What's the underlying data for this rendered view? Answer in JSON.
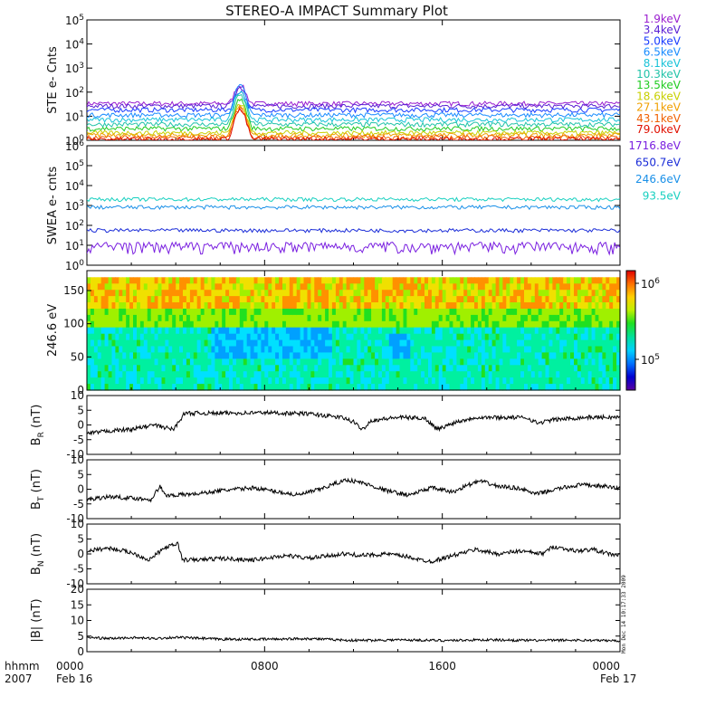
{
  "title": "STEREO-A IMPACT Summary Plot",
  "footer": {
    "time_label": "hhmm",
    "year": "2007",
    "start_date": "Feb 16",
    "end_date": "Feb 17",
    "stamp": "Mon Dec 14 10:17:33 2009"
  },
  "colors": {
    "axes": "#000000",
    "field_line": "#000000"
  },
  "chart_data": [
    {
      "type": "line",
      "id": "ste",
      "ylabel": "STE e- Cnts",
      "scale": "log",
      "ylim": [
        1,
        100000
      ],
      "y_ticks": [
        "10^0",
        "10^1",
        "10^2",
        "10^3",
        "10^4",
        "10^5"
      ],
      "series": [
        {
          "name": "1.9keV",
          "color": "#9b20d0",
          "level": 33
        },
        {
          "name": "3.4keV",
          "color": "#5a1fd4",
          "level": 26
        },
        {
          "name": "5.0keV",
          "color": "#1a3cff",
          "level": 18
        },
        {
          "name": "6.5keV",
          "color": "#1a8cff",
          "level": 11
        },
        {
          "name": "8.1keV",
          "color": "#19c3d8",
          "level": 7
        },
        {
          "name": "10.3keV",
          "color": "#22c3a8",
          "level": 4.5
        },
        {
          "name": "13.5keV",
          "color": "#22cc22",
          "level": 3
        },
        {
          "name": "18.6keV",
          "color": "#c8d000",
          "level": 2
        },
        {
          "name": "27.1keV",
          "color": "#f0a000",
          "level": 1.6
        },
        {
          "name": "43.1keV",
          "color": "#f06000",
          "level": 1.3
        },
        {
          "name": "79.0keV",
          "color": "#e01000",
          "level": 1.1
        }
      ]
    },
    {
      "type": "line",
      "id": "swea",
      "ylabel": "SWEA e- cnts",
      "scale": "log",
      "ylim": [
        1,
        1000000
      ],
      "y_ticks": [
        "10^0",
        "10^1",
        "10^2",
        "10^3",
        "10^4",
        "10^5",
        "10^6"
      ],
      "series": [
        {
          "name": "1716.8eV",
          "color": "#7a20e0",
          "level": 10
        },
        {
          "name": "650.7eV",
          "color": "#1a2cd8",
          "level": 55
        },
        {
          "name": "246.6eV",
          "color": "#1a90e8",
          "level": 800
        },
        {
          "name": "93.5eV",
          "color": "#19d0c0",
          "level": 2000
        }
      ]
    },
    {
      "type": "heatmap",
      "id": "pad",
      "ylabel": "246.6 eV",
      "ylim": [
        0,
        180
      ],
      "y_ticks": [
        0,
        50,
        100,
        150
      ],
      "colorbar_ticks": [
        "10^6",
        "10^5"
      ]
    },
    {
      "type": "line",
      "id": "br",
      "ylabel": "B_R (nT)",
      "sub": "R",
      "ylim": [
        -10,
        10
      ],
      "y_ticks": [
        10,
        5,
        0,
        -5,
        -10
      ],
      "points": [
        [
          0,
          -3
        ],
        [
          1,
          -2
        ],
        [
          2,
          -1.5
        ],
        [
          3,
          0
        ],
        [
          3.9,
          -1.5
        ],
        [
          4.4,
          4
        ],
        [
          6,
          4
        ],
        [
          8,
          4.2
        ],
        [
          10,
          3.8
        ],
        [
          11.5,
          2.5
        ],
        [
          12,
          1
        ],
        [
          12.4,
          -1.5
        ],
        [
          12.8,
          1.5
        ],
        [
          14,
          2.6
        ],
        [
          15.2,
          2.3
        ],
        [
          15.8,
          -1.5
        ],
        [
          16.6,
          1
        ],
        [
          17.5,
          2.6
        ],
        [
          19.8,
          2.5
        ],
        [
          20.3,
          0.6
        ],
        [
          21,
          1.8
        ],
        [
          22.5,
          2.6
        ],
        [
          24,
          2.6
        ]
      ]
    },
    {
      "type": "line",
      "id": "bt",
      "ylabel": "B_T (nT)",
      "sub": "T",
      "ylim": [
        -10,
        10
      ],
      "y_ticks": [
        10,
        5,
        0,
        -5,
        -10
      ],
      "points": [
        [
          0,
          -3.5
        ],
        [
          1,
          -2.5
        ],
        [
          2,
          -3
        ],
        [
          2.9,
          -3.5
        ],
        [
          3.1,
          -1
        ],
        [
          3.3,
          1
        ],
        [
          3.5,
          -2
        ],
        [
          4,
          -2
        ],
        [
          5,
          -1.5
        ],
        [
          6,
          -0.5
        ],
        [
          7.5,
          0.5
        ],
        [
          9.5,
          -2
        ],
        [
          10.5,
          0
        ],
        [
          11.2,
          2
        ],
        [
          11.7,
          3.2
        ],
        [
          12.4,
          2.2
        ],
        [
          13.5,
          -0.5
        ],
        [
          14.5,
          -2
        ],
        [
          15.5,
          0.5
        ],
        [
          16.5,
          -1
        ],
        [
          17,
          1
        ],
        [
          17.7,
          2.8
        ],
        [
          18.5,
          1
        ],
        [
          19.5,
          0.3
        ],
        [
          20.2,
          -1.7
        ],
        [
          21.3,
          0.3
        ],
        [
          22.2,
          1.5
        ],
        [
          23.3,
          1
        ],
        [
          24,
          0.2
        ]
      ]
    },
    {
      "type": "line",
      "id": "bn",
      "ylabel": "B_N (nT)",
      "sub": "N",
      "ylim": [
        -10,
        10
      ],
      "y_ticks": [
        10,
        5,
        0,
        -5,
        -10
      ],
      "points": [
        [
          0,
          1
        ],
        [
          1,
          2
        ],
        [
          2,
          0.5
        ],
        [
          2.8,
          -2
        ],
        [
          3.5,
          2
        ],
        [
          4.1,
          3.5
        ],
        [
          4.3,
          -2
        ],
        [
          5,
          -2
        ],
        [
          6,
          -1.5
        ],
        [
          7.5,
          -2
        ],
        [
          9,
          -0.5
        ],
        [
          10,
          -1.5
        ],
        [
          11.5,
          0
        ],
        [
          12.5,
          -0.5
        ],
        [
          13.5,
          0
        ],
        [
          14.5,
          -1
        ],
        [
          15,
          -2
        ],
        [
          15.5,
          -2.5
        ],
        [
          16.5,
          -0.5
        ],
        [
          17.5,
          1.5
        ],
        [
          18.5,
          0
        ],
        [
          19.5,
          1
        ],
        [
          20.5,
          0
        ],
        [
          21,
          2.5
        ],
        [
          22,
          1
        ],
        [
          22.8,
          1.5
        ],
        [
          23.5,
          0
        ],
        [
          24,
          -0.5
        ]
      ]
    },
    {
      "type": "line",
      "id": "bmag",
      "ylabel": "|B| (nT)",
      "ylim": [
        0,
        20
      ],
      "y_ticks": [
        20,
        15,
        10,
        5,
        0
      ],
      "points": [
        [
          0,
          4.6
        ],
        [
          1,
          4.2
        ],
        [
          2,
          4.5
        ],
        [
          3,
          4.2
        ],
        [
          4,
          4.6
        ],
        [
          6,
          4
        ],
        [
          8,
          4
        ],
        [
          10,
          4.2
        ],
        [
          12,
          3.6
        ],
        [
          14,
          3.8
        ],
        [
          16,
          3.6
        ],
        [
          18,
          3.8
        ],
        [
          20,
          3.6
        ],
        [
          22,
          3.7
        ],
        [
          24,
          3.5
        ]
      ]
    }
  ],
  "x_axis": {
    "range": [
      0,
      24
    ],
    "ticks": [
      "0000",
      "0800",
      "1600",
      "0000"
    ],
    "tick_hours": [
      0,
      8,
      16,
      24
    ]
  }
}
